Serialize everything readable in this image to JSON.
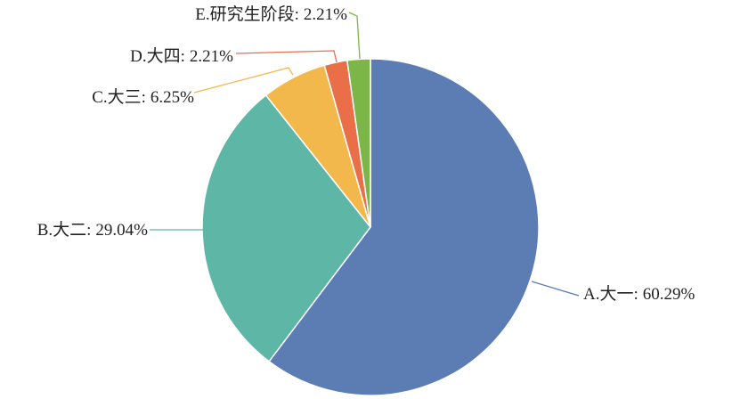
{
  "chart_data": {
    "type": "pie",
    "categories": [
      "A.大一:",
      "B.大二:",
      "C.大三:",
      "D.大四:",
      "E.研究生阶段:"
    ],
    "values": [
      60.29,
      29.04,
      6.25,
      2.21,
      2.21
    ],
    "value_labels": [
      "60.29%",
      "29.04%",
      "6.25%",
      "2.21%",
      "2.21%"
    ],
    "colors": [
      "#5b7db4",
      "#5db6a6",
      "#f2b84b",
      "#ea6e47",
      "#7cb548"
    ]
  }
}
